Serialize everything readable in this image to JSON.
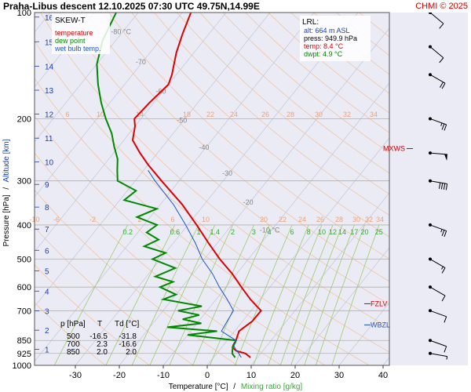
{
  "header": {
    "title": "Praha-Libus   descent   12.10.2025 07:30 UTC  49.75N,14.99E",
    "copyright": "CHMI © 2025"
  },
  "legend": {
    "title": "SKEW-T",
    "items": [
      {
        "label": "temperature",
        "color": "#dd0000"
      },
      {
        "label": "dew point",
        "color": "#008800"
      },
      {
        "label": "wet bulb temp.",
        "color": "#1a55cc"
      }
    ]
  },
  "lrl_box": {
    "title": "LRL:",
    "lines": [
      {
        "text": "alt: 664 m ASL",
        "color": "#1a3fb0"
      },
      {
        "text": "press: 949.9 hPa",
        "color": "#000000"
      },
      {
        "text": "temp: 8.4 °C",
        "color": "#dd0000"
      },
      {
        "text": "dwpt: 4.9 °C",
        "color": "#008800"
      }
    ]
  },
  "table": {
    "headers": [
      "p [hPa]",
      "T",
      "Td [°C]"
    ],
    "rows": [
      [
        "500",
        "-16.5",
        "-31.8"
      ],
      [
        "700",
        "2.3",
        "-16.6"
      ],
      [
        "850",
        "2.0",
        "2.0"
      ]
    ]
  },
  "axes": {
    "xlabel": "Temperature [°C]",
    "xlabel_sep": "/",
    "xlabel2": "Mixing ratio [g/kg]",
    "ylabel_pressure": "Pressure [hPa]",
    "ylabel_sep": "/",
    "ylabel_altitude": "Altitude [km]",
    "x_ticks": [
      -30,
      -20,
      -10,
      0,
      10,
      20,
      30,
      40
    ],
    "y_pressure_ticks": [
      100,
      200,
      300,
      400,
      500,
      600,
      700,
      850,
      925,
      1000
    ],
    "y_pressure_labels": [
      "100",
      "200",
      "300",
      "400",
      "500",
      "600",
      "700",
      "850",
      "925",
      "1000"
    ],
    "altitude_km_ticks": [
      1,
      2,
      3,
      4,
      5,
      6,
      7,
      8,
      9,
      10,
      11,
      12,
      13,
      14,
      15,
      16
    ],
    "altitude_km_pressures": [
      900,
      795,
      701,
      616,
      540,
      472,
      411,
      356,
      307,
      265,
      227,
      194,
      166,
      142,
      121,
      103
    ],
    "color_temperature_axis": "#000000",
    "color_altitude_axis": "#1a3fb0",
    "color_mixing_label": "#33aa33"
  },
  "levels": {
    "MXWS": {
      "label": "MXWS",
      "pressure": 243
    },
    "FZLV": {
      "label": "FZLV",
      "pressure": 669
    },
    "WBZL": {
      "label": "WBZL",
      "pressure": 768
    }
  },
  "isotherm_labels": {
    "values": [
      -80,
      -70,
      -60,
      -50,
      -40,
      -30,
      -20,
      -10
    ],
    "texts": [
      "-80 °C",
      "-70",
      "-60",
      "-50",
      "-40",
      "-30",
      "-20",
      "-10 °C"
    ]
  },
  "theta_labels_top": [
    "6",
    "10",
    "14",
    "18",
    "22",
    "24",
    "26",
    "28",
    "30",
    "32",
    "34"
  ],
  "theta_labels_mid": [
    "-10",
    "-6",
    "-2",
    "2",
    "6",
    "10",
    "20",
    "22",
    "24",
    "26",
    "28",
    "30",
    "32",
    "34"
  ],
  "mixing_ratio": {
    "values": [
      0.2,
      0.6,
      1,
      1.4,
      2,
      3,
      4,
      6,
      8,
      10,
      12,
      14,
      17,
      20,
      25
    ],
    "labels": [
      "0.2",
      "0.6",
      "1",
      "1.4",
      "2",
      "3",
      "4",
      "6",
      "8",
      "10",
      "12",
      "14",
      "17",
      "20",
      "25"
    ],
    "label_pressure": 400
  },
  "colors": {
    "background": "#ebebf6",
    "grid": "#b0b0b0",
    "isotherm": "#c8c8d8",
    "dry_adiabat": "#f2c5a0",
    "theta_label": "#f0a070",
    "mixing_line": "#9ccc66",
    "temperature": "#dd0000",
    "dewpoint": "#008800",
    "wetbulb": "#1a55cc",
    "wind": "#000000"
  },
  "chart_data": {
    "type": "line",
    "title": "SKEW-T",
    "xlabel": "Temperature [°C]",
    "ylabel": "Pressure [hPa]",
    "xlim": [
      -35,
      50
    ],
    "ylim": [
      1000,
      100
    ],
    "y_scale": "log",
    "series": [
      {
        "name": "temperature",
        "color": "#dd0000",
        "points": [
          [
            950,
            8.4
          ],
          [
            925,
            6.5
          ],
          [
            910,
            4.0
          ],
          [
            890,
            2.5
          ],
          [
            875,
            2.2
          ],
          [
            850,
            2.0
          ],
          [
            800,
            1.0
          ],
          [
            750,
            2.2
          ],
          [
            700,
            2.3
          ],
          [
            680,
            0.5
          ],
          [
            650,
            -2.2
          ],
          [
            600,
            -6.5
          ],
          [
            550,
            -11.0
          ],
          [
            500,
            -16.5
          ],
          [
            450,
            -22.0
          ],
          [
            400,
            -28.0
          ],
          [
            350,
            -35.0
          ],
          [
            300,
            -44.0
          ],
          [
            270,
            -50.0
          ],
          [
            250,
            -54.0
          ],
          [
            230,
            -58.0
          ],
          [
            210,
            -60.0
          ],
          [
            200,
            -61.5
          ],
          [
            180,
            -61.0
          ],
          [
            160,
            -60.0
          ],
          [
            150,
            -61.0
          ],
          [
            130,
            -64.0
          ],
          [
            115,
            -66.0
          ],
          [
            100,
            -68.0
          ]
        ]
      },
      {
        "name": "dew point",
        "color": "#008800",
        "points": [
          [
            950,
            4.9
          ],
          [
            925,
            3.5
          ],
          [
            900,
            2.8
          ],
          [
            880,
            2.4
          ],
          [
            860,
            2.2
          ],
          [
            850,
            2.0
          ],
          [
            820,
            -10.0
          ],
          [
            800,
            -4.0
          ],
          [
            780,
            -16.0
          ],
          [
            760,
            -9.0
          ],
          [
            740,
            -14.0
          ],
          [
            720,
            -11.0
          ],
          [
            700,
            -16.6
          ],
          [
            680,
            -12.0
          ],
          [
            650,
            -22.0
          ],
          [
            630,
            -20.0
          ],
          [
            600,
            -25.0
          ],
          [
            580,
            -23.0
          ],
          [
            560,
            -28.0
          ],
          [
            530,
            -25.0
          ],
          [
            500,
            -31.8
          ],
          [
            480,
            -30.0
          ],
          [
            460,
            -36.0
          ],
          [
            440,
            -34.0
          ],
          [
            420,
            -38.0
          ],
          [
            400,
            -37.0
          ],
          [
            380,
            -43.0
          ],
          [
            360,
            -40.0
          ],
          [
            340,
            -49.0
          ],
          [
            320,
            -48.0
          ],
          [
            300,
            -54.0
          ],
          [
            280,
            -56.0
          ],
          [
            260,
            -58.0
          ],
          [
            240,
            -61.0
          ],
          [
            220,
            -64.0
          ],
          [
            200,
            -68.0
          ],
          [
            180,
            -72.0
          ],
          [
            160,
            -76.0
          ],
          [
            140,
            -80.0
          ],
          [
            120,
            -83.0
          ],
          [
            100,
            -85.0
          ]
        ]
      },
      {
        "name": "wet bulb temp.",
        "color": "#1a55cc",
        "points": [
          [
            950,
            6.3
          ],
          [
            925,
            5.0
          ],
          [
            900,
            3.5
          ],
          [
            875,
            2.2
          ],
          [
            850,
            2.0
          ],
          [
            800,
            -3.0
          ],
          [
            750,
            -3.5
          ],
          [
            700,
            -4.0
          ],
          [
            650,
            -7.5
          ],
          [
            600,
            -11.5
          ],
          [
            550,
            -15.5
          ],
          [
            500,
            -20.5
          ],
          [
            450,
            -25.0
          ],
          [
            400,
            -30.5
          ],
          [
            350,
            -37.0
          ],
          [
            300,
            -45.5
          ],
          [
            280,
            -49.0
          ]
        ]
      }
    ],
    "wind_barbs": [
      {
        "pressure": 925,
        "direction": 280,
        "speed_kt": 5
      },
      {
        "pressure": 850,
        "direction": 290,
        "speed_kt": 10
      },
      {
        "pressure": 700,
        "direction": 290,
        "speed_kt": 10
      },
      {
        "pressure": 600,
        "direction": 300,
        "speed_kt": 10
      },
      {
        "pressure": 500,
        "direction": 300,
        "speed_kt": 15
      },
      {
        "pressure": 400,
        "direction": 290,
        "speed_kt": 25
      },
      {
        "pressure": 300,
        "direction": 280,
        "speed_kt": 40
      },
      {
        "pressure": 250,
        "direction": 275,
        "speed_kt": 50
      },
      {
        "pressure": 200,
        "direction": 290,
        "speed_kt": 25
      },
      {
        "pressure": 150,
        "direction": 300,
        "speed_kt": 20
      },
      {
        "pressure": 125,
        "direction": 310,
        "speed_kt": 10
      },
      {
        "pressure": 100,
        "direction": 310,
        "speed_kt": 10
      }
    ]
  }
}
